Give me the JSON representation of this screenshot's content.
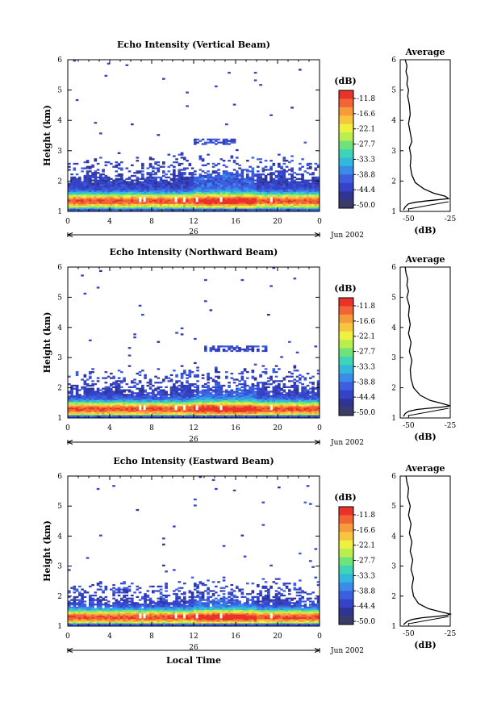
{
  "colorbar": {
    "unit": "(dB)",
    "labels": [
      "-11.8",
      "-16.6",
      "-22.1",
      "-27.7",
      "-33.3",
      "-38.8",
      "-44.4",
      "-50.0"
    ],
    "colors": [
      "#e8322a",
      "#f26436",
      "#f79a3c",
      "#f7c63e",
      "#eef13f",
      "#b9ee4c",
      "#6fe27a",
      "#3fd3b8",
      "#33b7dd",
      "#3a8ce8",
      "#3c5fe0",
      "#3643c6",
      "#2e3491",
      "#3b3b68"
    ]
  },
  "date_label": "Jun 2002",
  "day_label": "26",
  "shared_xlabel": "Local Time",
  "chart_data": [
    {
      "type": "heatmap",
      "title": "Echo Intensity (Vertical Beam)",
      "xlabel": "",
      "ylabel": "Height (km)",
      "x_ticks": [
        "0",
        "4",
        "8",
        "12",
        "16",
        "20",
        "0"
      ],
      "y_ticks": [
        "1",
        "2",
        "3",
        "4",
        "5",
        "6"
      ],
      "xlim": [
        0,
        24
      ],
      "ylim": [
        1,
        6
      ],
      "layer_top_km": 2.2,
      "peak_height_km": 1.35,
      "scatter_clouds": [
        {
          "x_range": [
            12,
            16
          ],
          "height_km": 3.3
        }
      ],
      "seed": 11
    },
    {
      "type": "heatmap",
      "title": "Echo Intensity (Northward Beam)",
      "xlabel": "",
      "ylabel": "Height (km)",
      "x_ticks": [
        "0",
        "4",
        "8",
        "12",
        "16",
        "20",
        "0"
      ],
      "y_ticks": [
        "1",
        "2",
        "3",
        "4",
        "5",
        "6"
      ],
      "xlim": [
        0,
        24
      ],
      "ylim": [
        1,
        6
      ],
      "layer_top_km": 2.0,
      "peak_height_km": 1.3,
      "scatter_clouds": [
        {
          "x_range": [
            13,
            19
          ],
          "height_km": 3.3
        }
      ],
      "seed": 23
    },
    {
      "type": "heatmap",
      "title": "Echo Intensity (Eastward Beam)",
      "xlabel": "Local Time",
      "ylabel": "Height (km)",
      "x_ticks": [
        "0",
        "4",
        "8",
        "12",
        "16",
        "20",
        "0"
      ],
      "y_ticks": [
        "1",
        "2",
        "3",
        "4",
        "5",
        "6"
      ],
      "xlim": [
        0,
        24
      ],
      "ylim": [
        1,
        6
      ],
      "layer_top_km": 1.9,
      "peak_height_km": 1.3,
      "scatter_clouds": [
        {
          "x_range": [
            4,
            6
          ],
          "height_km": 2.2
        }
      ],
      "seed": 37
    },
    {
      "type": "line",
      "title": "Average",
      "xlabel": "(dB)",
      "ylabel": "",
      "x_ticks": [
        "-50",
        "-25"
      ],
      "y_ticks": [
        "1",
        "2",
        "3",
        "4",
        "5",
        "6"
      ],
      "xlim": [
        -55,
        -25
      ],
      "ylim": [
        1,
        6
      ],
      "series": [
        {
          "x": [
            -53,
            -52,
            -50,
            -46,
            -40,
            -33,
            -26,
            -28,
            -35,
            -41,
            -46,
            -48,
            -49,
            -48.5,
            -49.5,
            -48,
            -49,
            -50,
            -49,
            -49.5,
            -50.5,
            -50,
            -51,
            -50.5,
            -51.5,
            -51,
            -52
          ],
          "y": [
            1.05,
            1.15,
            1.25,
            1.3,
            1.34,
            1.38,
            1.42,
            1.5,
            1.6,
            1.75,
            1.95,
            2.2,
            2.5,
            2.8,
            3.1,
            3.3,
            3.6,
            3.9,
            4.2,
            4.5,
            4.8,
            5.0,
            5.2,
            5.4,
            5.6,
            5.8,
            6.0
          ]
        }
      ]
    },
    {
      "type": "line",
      "title": "Average",
      "xlabel": "(dB)",
      "ylabel": "",
      "x_ticks": [
        "-50",
        "-25"
      ],
      "y_ticks": [
        "1",
        "2",
        "3",
        "4",
        "5",
        "6"
      ],
      "xlim": [
        -55,
        -25
      ],
      "ylim": [
        1,
        6
      ],
      "series": [
        {
          "x": [
            -53,
            -52,
            -50,
            -45,
            -38,
            -30,
            -25,
            -30,
            -37,
            -43,
            -47,
            -48.5,
            -49,
            -48,
            -49.5,
            -48.5,
            -50,
            -49,
            -50,
            -49.5,
            -51,
            -50,
            -51,
            -50.5,
            -51.5,
            -52
          ],
          "y": [
            1.05,
            1.15,
            1.22,
            1.28,
            1.32,
            1.36,
            1.4,
            1.48,
            1.58,
            1.75,
            2.0,
            2.3,
            2.6,
            2.9,
            3.2,
            3.5,
            3.8,
            4.1,
            4.4,
            4.7,
            5.0,
            5.2,
            5.4,
            5.6,
            5.8,
            6.0
          ]
        }
      ]
    },
    {
      "type": "line",
      "title": "Average",
      "xlabel": "(dB)",
      "ylabel": "",
      "x_ticks": [
        "-50",
        "-25"
      ],
      "y_ticks": [
        "1",
        "2",
        "3",
        "4",
        "5",
        "6"
      ],
      "xlim": [
        -55,
        -25
      ],
      "ylim": [
        1,
        6
      ],
      "series": [
        {
          "x": [
            -53,
            -51,
            -48,
            -42,
            -34,
            -27,
            -25,
            -31,
            -38,
            -44,
            -47,
            -48,
            -47,
            -48.5,
            -47.5,
            -49,
            -48,
            -49.5,
            -48.5,
            -50,
            -49,
            -50.5,
            -50,
            -51,
            -51.5
          ],
          "y": [
            1.05,
            1.15,
            1.22,
            1.28,
            1.32,
            1.36,
            1.4,
            1.48,
            1.58,
            1.75,
            2.0,
            2.3,
            2.6,
            2.9,
            3.2,
            3.5,
            3.8,
            4.1,
            4.4,
            4.7,
            5.0,
            5.3,
            5.6,
            5.8,
            6.0
          ]
        }
      ]
    }
  ]
}
